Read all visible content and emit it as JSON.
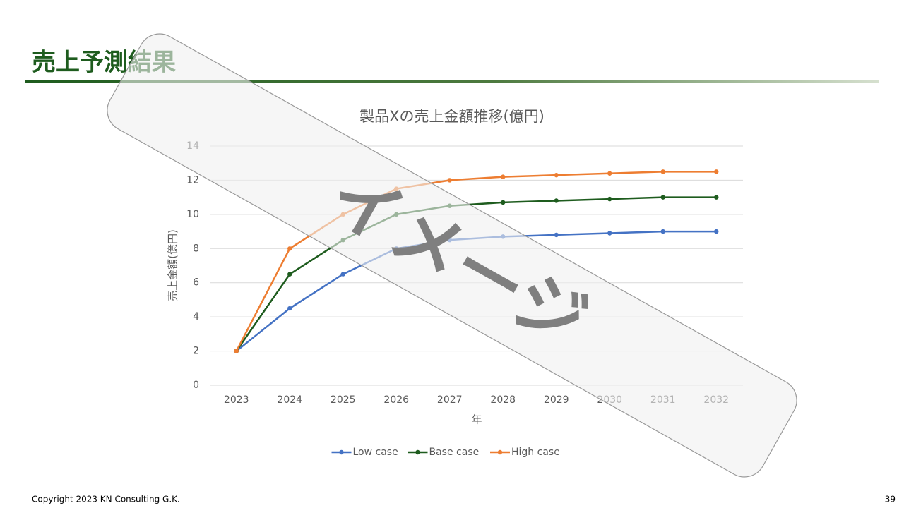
{
  "slide_title": "売上予測結果",
  "chart_data": {
    "type": "line",
    "title": "製品Xの売上金額推移(億円)",
    "x_label": "年",
    "y_label": "売上金額(億円)",
    "categories": [
      "2023",
      "2024",
      "2025",
      "2026",
      "2027",
      "2028",
      "2029",
      "2030",
      "2031",
      "2032"
    ],
    "series": [
      {
        "name": "Low case",
        "color": "#4472c4",
        "values": [
          2,
          4.5,
          6.5,
          8,
          8.5,
          8.7,
          8.8,
          8.9,
          9,
          9
        ]
      },
      {
        "name": "Base case",
        "color": "#1e5c1e",
        "values": [
          2,
          6.5,
          8.5,
          10,
          10.5,
          10.7,
          10.8,
          10.9,
          11,
          11
        ]
      },
      {
        "name": "High case",
        "color": "#ed7d31",
        "values": [
          2,
          8,
          10,
          11.5,
          12,
          12.2,
          12.3,
          12.4,
          12.5,
          12.5
        ]
      }
    ],
    "ylim": [
      0,
      14
    ],
    "yticks": [
      0,
      2,
      4,
      6,
      8,
      10,
      12,
      14
    ],
    "grid": true,
    "legend": "bottom"
  },
  "watermark": "イメージ",
  "footer": "Copyright 2023 KN Consulting G.K.",
  "page_number": 39
}
